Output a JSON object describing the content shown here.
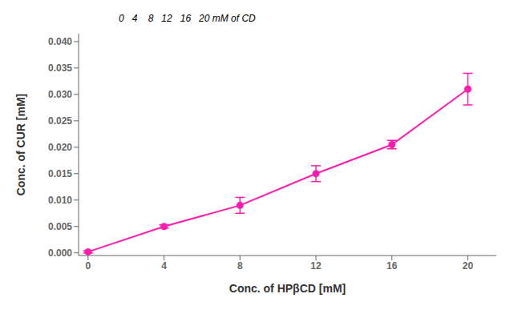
{
  "chart_data": {
    "type": "line",
    "x": [
      0,
      4,
      8,
      12,
      16,
      20
    ],
    "values": [
      0.0002,
      0.005,
      0.009,
      0.015,
      0.0205,
      0.031
    ],
    "yerr": [
      0.0002,
      0.0003,
      0.0015,
      0.0015,
      0.0008,
      0.003
    ],
    "color": "#FF1CAE",
    "marker": "circle",
    "xlabel": "Conc. of HPβCD [mM]",
    "ylabel": "Conc. of CUR [mM]",
    "xlim": [
      -0.5,
      21.5
    ],
    "ylim": [
      -0.0005,
      0.0415
    ],
    "xticks": [
      0,
      4,
      8,
      12,
      16,
      20
    ],
    "yticks": [
      {
        "value": 0.0,
        "label": "0.000"
      },
      0.005,
      {
        "value": 0.01,
        "label": "0.010"
      },
      0.015,
      {
        "value": 0.02,
        "label": "0.020"
      },
      0.025,
      {
        "value": 0.03,
        "label": "0.030"
      },
      0.035,
      {
        "value": 0.04,
        "label": "0.040"
      }
    ],
    "annotations": [
      {
        "text": "0   4    8   12   16   20 mM of CD"
      }
    ],
    "grid": false
  }
}
